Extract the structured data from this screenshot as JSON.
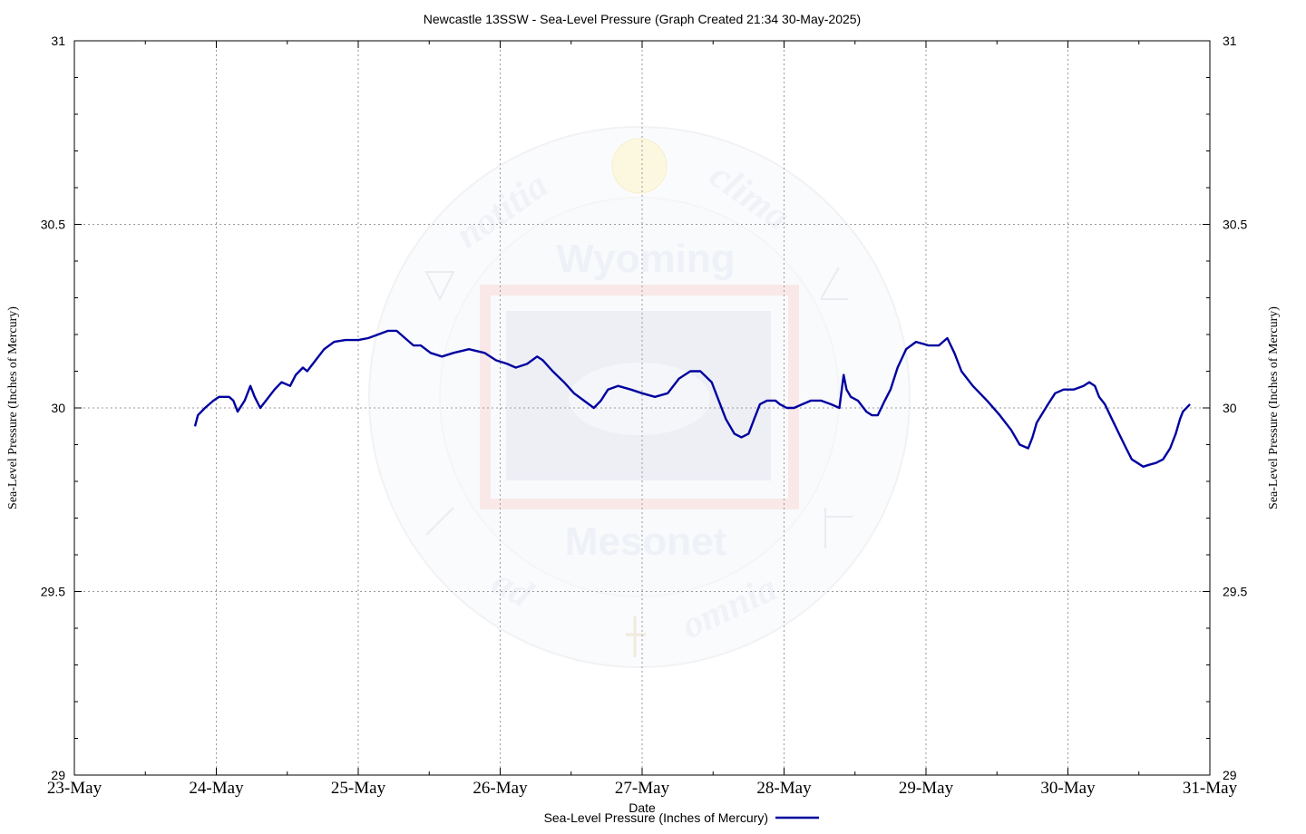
{
  "chart_data": {
    "type": "line",
    "title": "Newcastle 13SSW - Sea-Level Pressure (Graph Created 21:34 30-May-2025)",
    "xlabel": "Date",
    "ylabel": "Sea-Level Pressure (Inches of Mercury)",
    "ylabel_right": "Sea-Level Pressure (Inches of Mercury)",
    "x_ticks": [
      "23-May",
      "24-May",
      "25-May",
      "26-May",
      "27-May",
      "28-May",
      "29-May",
      "30-May",
      "31-May"
    ],
    "y_ticks": [
      "29",
      "29.5",
      "30",
      "30.5",
      "31"
    ],
    "xlim_days": [
      23,
      31
    ],
    "ylim": [
      29,
      31
    ],
    "grid": true,
    "legend_position": "bottom-center",
    "watermark": {
      "top_text": "Wyoming",
      "bottom_text": "Mesonet",
      "ring_words": [
        "notitia",
        "clima",
        "ad",
        "omnia"
      ]
    },
    "series": [
      {
        "name": "Sea-Level Pressure (Inches of Mercury)",
        "color": "#0000a0",
        "x_unit": "day of May 2025 (fractional)",
        "x": [
          23.85,
          23.87,
          23.92,
          23.98,
          24.02,
          24.06,
          24.09,
          24.12,
          24.15,
          24.2,
          24.24,
          24.27,
          24.31,
          24.35,
          24.41,
          24.46,
          24.52,
          24.56,
          24.61,
          24.64,
          24.7,
          24.76,
          24.83,
          24.91,
          25.0,
          25.07,
          25.14,
          25.21,
          25.27,
          25.33,
          25.39,
          25.44,
          25.51,
          25.59,
          25.67,
          25.78,
          25.89,
          25.97,
          26.05,
          26.11,
          26.19,
          26.26,
          26.3,
          26.37,
          26.45,
          26.52,
          26.59,
          26.66,
          26.71,
          26.76,
          26.83,
          26.92,
          27.0,
          27.09,
          27.18,
          27.26,
          27.34,
          27.41,
          27.49,
          27.54,
          27.59,
          27.65,
          27.7,
          27.75,
          27.79,
          27.83,
          27.88,
          27.94,
          27.97,
          28.02,
          28.07,
          28.13,
          28.19,
          28.26,
          28.33,
          28.39,
          28.42,
          28.44,
          28.47,
          28.52,
          28.58,
          28.62,
          28.66,
          28.71,
          28.75,
          28.8,
          28.86,
          28.93,
          29.02,
          29.09,
          29.15,
          29.2,
          29.25,
          29.33,
          29.43,
          29.52,
          29.6,
          29.66,
          29.72,
          29.75,
          29.78,
          29.86,
          29.91,
          29.97,
          30.04,
          30.11,
          30.15,
          30.19,
          30.22,
          30.26,
          30.31,
          30.36,
          30.41,
          30.45,
          30.49,
          30.53,
          30.57,
          30.62,
          30.67,
          30.72,
          30.76,
          30.79,
          30.81,
          30.86
        ],
        "y": [
          29.95,
          29.98,
          30.0,
          30.02,
          30.03,
          30.03,
          30.03,
          30.02,
          29.99,
          30.02,
          30.06,
          30.03,
          30.0,
          30.02,
          30.05,
          30.07,
          30.06,
          30.09,
          30.11,
          30.1,
          30.13,
          30.16,
          30.18,
          30.185,
          30.185,
          30.19,
          30.2,
          30.21,
          30.21,
          30.19,
          30.17,
          30.17,
          30.15,
          30.14,
          30.15,
          30.16,
          30.15,
          30.13,
          30.12,
          30.11,
          30.12,
          30.14,
          30.13,
          30.1,
          30.07,
          30.04,
          30.02,
          30.0,
          30.02,
          30.05,
          30.06,
          30.05,
          30.04,
          30.03,
          30.04,
          30.08,
          30.1,
          30.1,
          30.07,
          30.02,
          29.97,
          29.93,
          29.92,
          29.93,
          29.97,
          30.01,
          30.02,
          30.02,
          30.01,
          30.0,
          30.0,
          30.01,
          30.02,
          30.02,
          30.01,
          30.0,
          30.09,
          30.05,
          30.03,
          30.02,
          29.99,
          29.98,
          29.98,
          30.02,
          30.05,
          30.11,
          30.16,
          30.18,
          30.17,
          30.17,
          30.19,
          30.15,
          30.1,
          30.06,
          30.02,
          29.98,
          29.94,
          29.9,
          29.89,
          29.92,
          29.96,
          30.01,
          30.04,
          30.05,
          30.05,
          30.06,
          30.07,
          30.06,
          30.03,
          30.01,
          29.97,
          29.93,
          29.89,
          29.86,
          29.85,
          29.84,
          29.845,
          29.85,
          29.86,
          29.89,
          29.93,
          29.97,
          29.99,
          30.01
        ]
      }
    ]
  }
}
